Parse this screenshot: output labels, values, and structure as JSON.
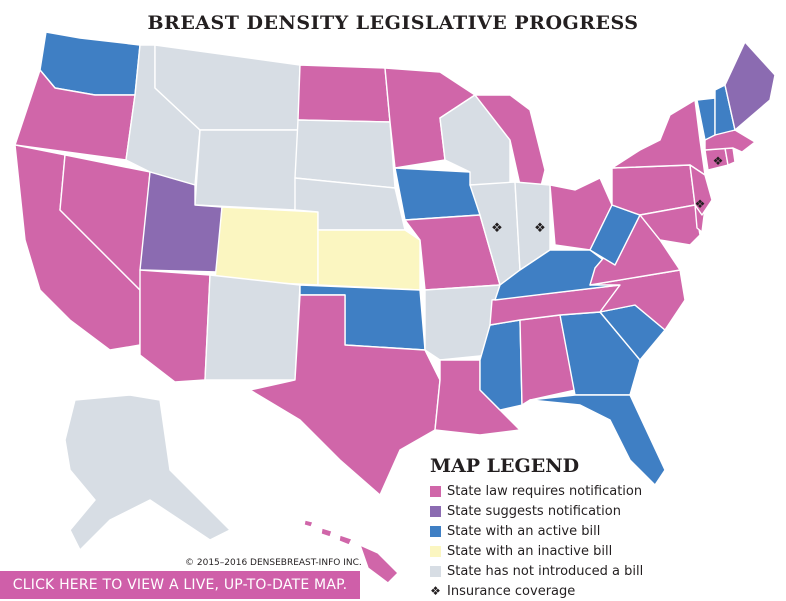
{
  "title": "BREAST DENSITY LEGISLATIVE PROGRESS",
  "colors": {
    "law": "#d066a9",
    "suggests": "#8b6bb1",
    "active": "#3f7fc4",
    "inactive": "#fbf6c1",
    "none": "#d7dde4"
  },
  "legend": {
    "title": "MAP LEGEND",
    "items": [
      {
        "label": "State law requires notification",
        "key": "law"
      },
      {
        "label": "State suggests notification",
        "key": "suggests"
      },
      {
        "label": "State with an active bill",
        "key": "active"
      },
      {
        "label": "State with an inactive bill",
        "key": "inactive"
      },
      {
        "label": "State has not introduced a bill",
        "key": "none"
      }
    ],
    "insurance": {
      "symbol": "❖",
      "label": "Insurance coverage"
    }
  },
  "insurance_marker": "❖",
  "copyright": "© 2015–2016 DENSEBREAST-INFO INC.",
  "cta_label": "CLICK HERE TO VIEW A LIVE, UP-TO-DATE MAP."
}
